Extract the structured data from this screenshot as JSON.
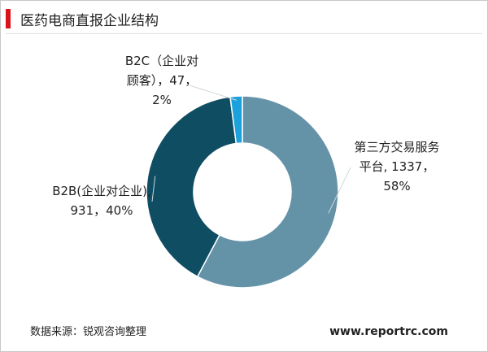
{
  "chart_data": {
    "type": "donut",
    "title": "医药电商直报企业结构",
    "data_labels": [
      "第三方交易服务平台, 1337，58%",
      "B2B(企业对企业), 931，40%",
      "B2C（企业对顾客），47，2%"
    ],
    "values": [
      1337,
      931,
      47
    ],
    "colors": [
      "#6493a8",
      "#0f4d63",
      "#1ba1dc"
    ],
    "source": "数据来源：锐观咨询整理",
    "website": "www.reportrc.com"
  }
}
